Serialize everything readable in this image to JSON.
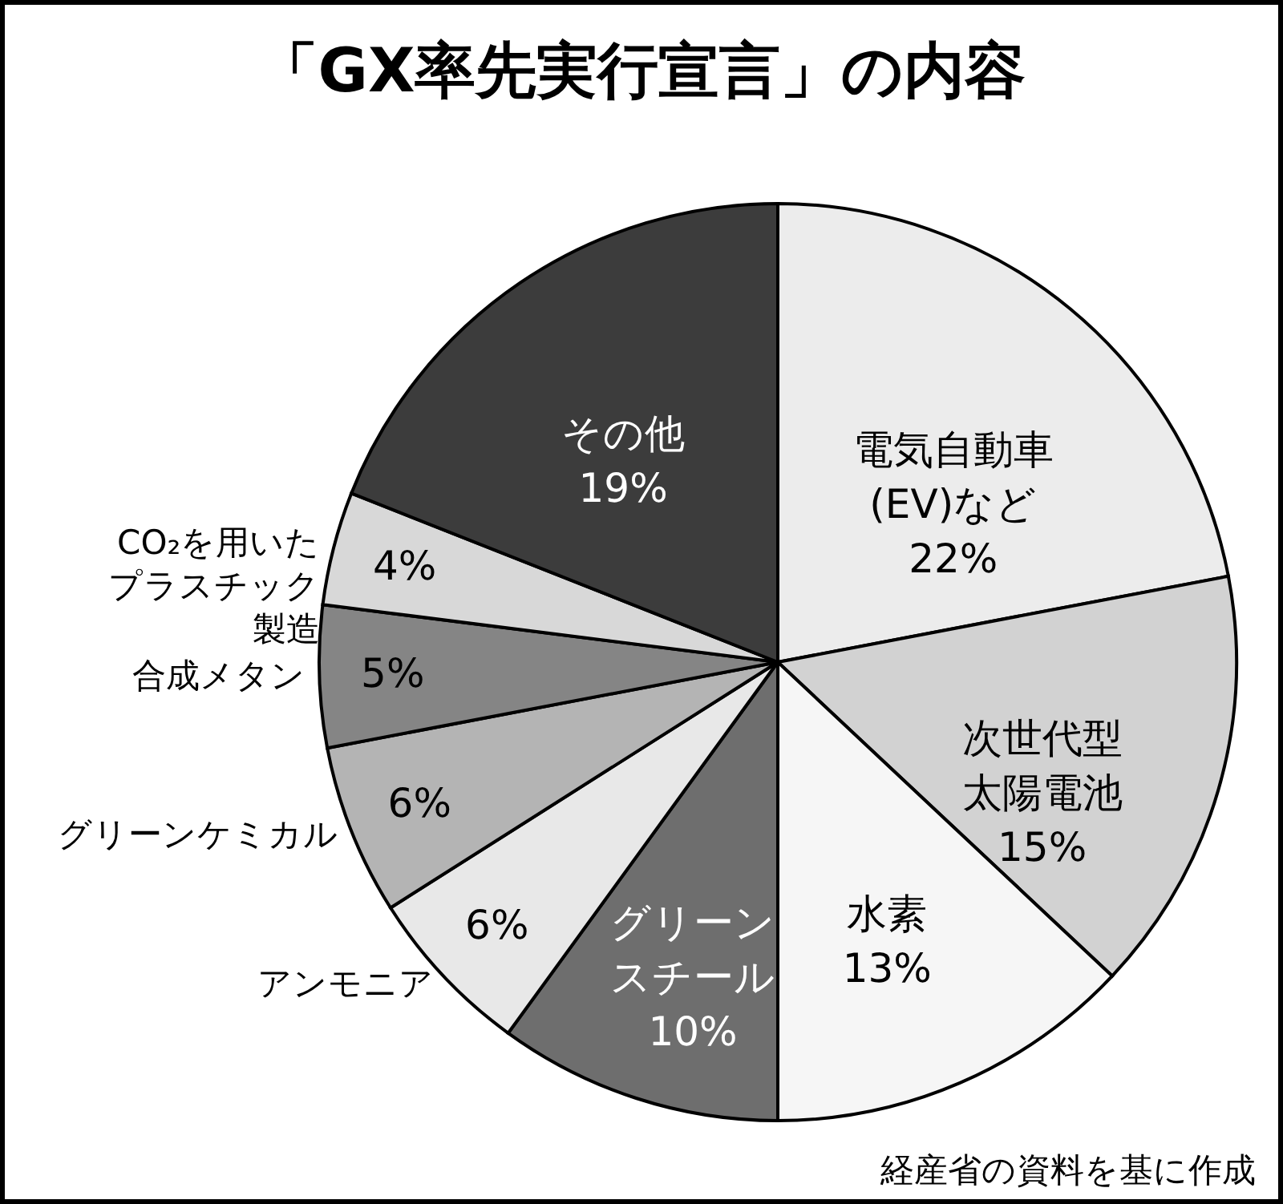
{
  "chart_data": {
    "type": "pie",
    "title": "「GX率先実行宣言」の内容",
    "categories": [
      "電気自動車(EV)など",
      "次世代型太陽電池",
      "水素",
      "グリーンスチール",
      "アンモニア",
      "グリーンケミカル",
      "合成メタン",
      "CO₂を用いたプラスチック製造",
      "その他"
    ],
    "values": [
      22,
      15,
      13,
      10,
      6,
      6,
      5,
      4,
      19
    ],
    "value_labels": [
      "22%",
      "15%",
      "13%",
      "10%",
      "6%",
      "6%",
      "5%",
      "4%",
      "19%"
    ],
    "colors": [
      "#ececec",
      "#d2d2d2",
      "#f6f6f6",
      "#6e6e6e",
      "#e8e8e8",
      "#b4b4b4",
      "#858585",
      "#d8d8d8",
      "#3c3c3c"
    ],
    "annotations": [
      "経産省の資料を基に作成"
    ]
  }
}
